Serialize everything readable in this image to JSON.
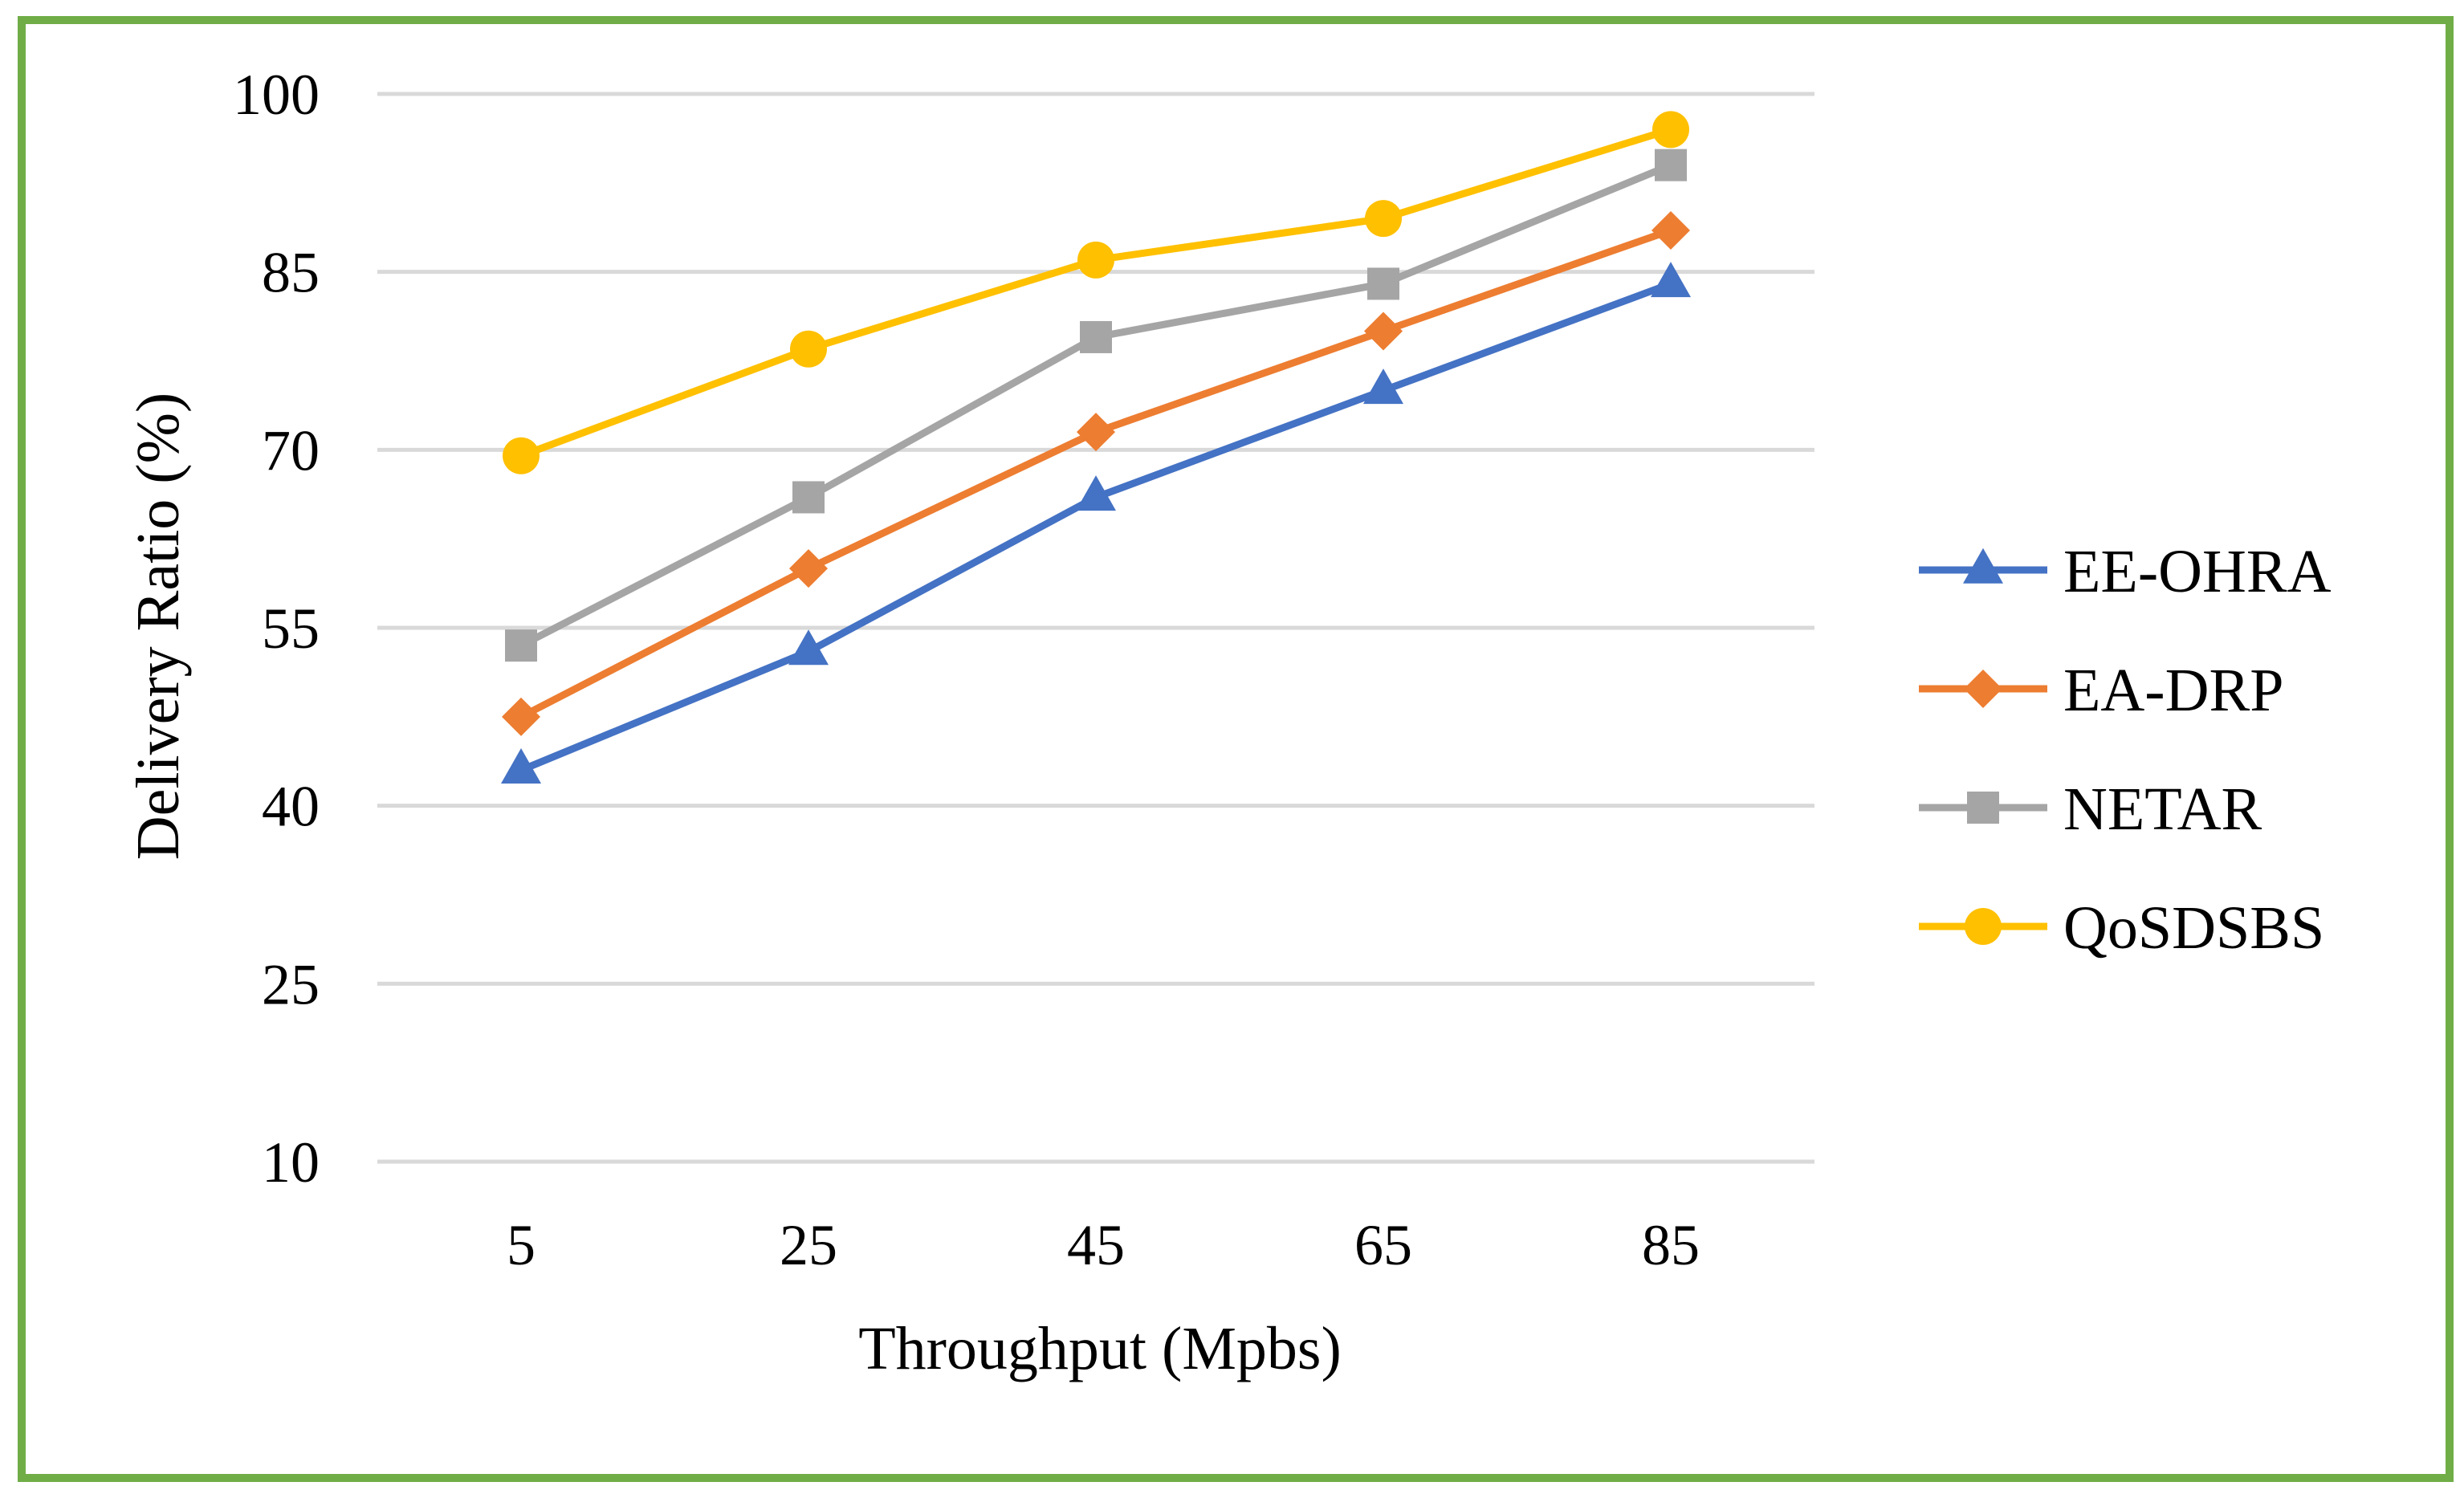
{
  "chart_data": {
    "type": "line",
    "title": "",
    "xlabel": "Throughput (Mpbs)",
    "ylabel": "Delivery Ratio (%)",
    "categories": [
      "5",
      "25",
      "45",
      "65",
      "85"
    ],
    "ylim": [
      10,
      100
    ],
    "yticks": [
      10,
      25,
      40,
      55,
      70,
      85,
      100
    ],
    "grid": true,
    "legend_position": "right",
    "frame_color": "#70ad47",
    "grid_color": "#d9d9d9",
    "series": [
      {
        "name": "EE-OHRA",
        "marker": "triangle",
        "color": "#4472c4",
        "values": [
          43,
          53,
          66,
          75,
          84
        ]
      },
      {
        "name": "EA-DRP",
        "marker": "diamond",
        "color": "#ed7d31",
        "values": [
          47.5,
          60,
          71.5,
          80,
          88.5
        ]
      },
      {
        "name": "NETAR",
        "marker": "square",
        "color": "#a5a5a5",
        "values": [
          53.5,
          66,
          79.5,
          84,
          94
        ]
      },
      {
        "name": "QoSDSBS",
        "marker": "circle",
        "color": "#ffc000",
        "values": [
          69.5,
          78.5,
          86,
          89.5,
          97
        ]
      }
    ]
  }
}
